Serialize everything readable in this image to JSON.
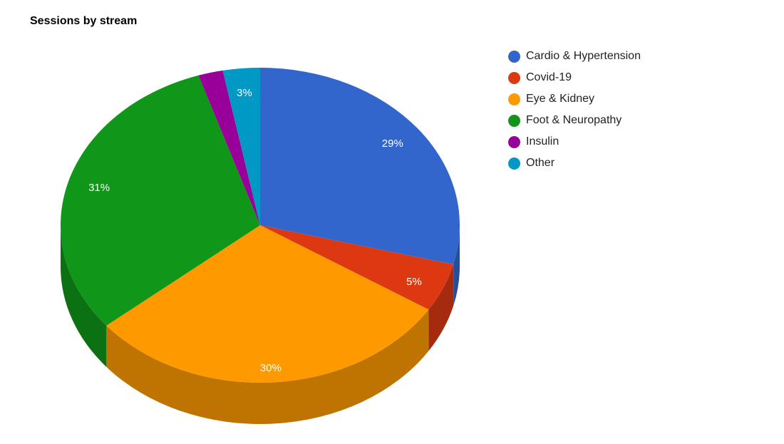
{
  "page": {
    "background_color": "#FFFFFF"
  },
  "chart_data": {
    "type": "pie",
    "is3d": true,
    "title": "Sessions by stream",
    "title_color": "#000000",
    "legend_position": "right",
    "legend_text_color": "#222222",
    "slice_label_color": "#FFFFFF",
    "total_percent": 100,
    "slices": [
      {
        "name": "Cardio & Hypertension",
        "value": 29,
        "label": "29%",
        "color": "#3366CC"
      },
      {
        "name": "Covid-19",
        "value": 5,
        "label": "5%",
        "color": "#DC3912"
      },
      {
        "name": "Eye & Kidney",
        "value": 30,
        "label": "30%",
        "color": "#FF9900"
      },
      {
        "name": "Foot & Neuropathy",
        "value": 31,
        "label": "31%",
        "color": "#109618"
      },
      {
        "name": "Insulin",
        "value": 2,
        "label": "",
        "color": "#990099"
      },
      {
        "name": "Other",
        "value": 3,
        "label": "3%",
        "color": "#0099C6"
      }
    ]
  }
}
